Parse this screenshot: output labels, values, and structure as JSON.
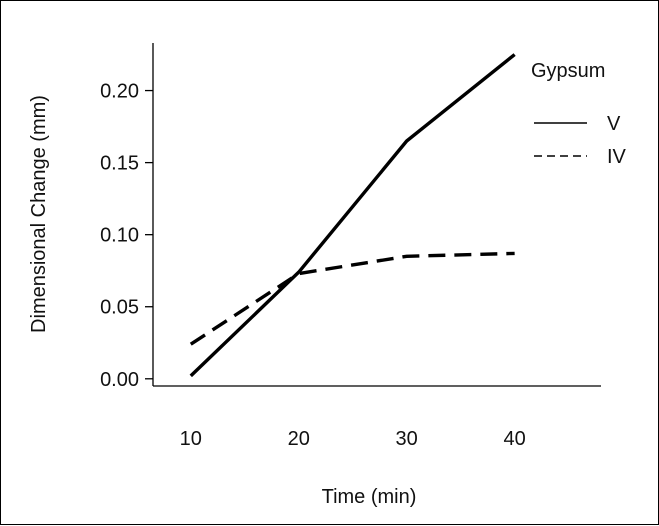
{
  "chart_data": {
    "type": "line",
    "x": [
      10,
      20,
      30,
      40
    ],
    "series": [
      {
        "name": "V",
        "values": [
          0.002,
          0.074,
          0.165,
          0.225
        ],
        "line_style": "solid",
        "color": "#000000"
      },
      {
        "name": "IV",
        "values": [
          0.024,
          0.073,
          0.085,
          0.087
        ],
        "line_style": "dashed",
        "color": "#000000"
      }
    ],
    "xlabel": "Time (min)",
    "ylabel": "Dimensional Change (mm)",
    "xticks": [
      "10",
      "20",
      "30",
      "40"
    ],
    "yticks": [
      "0.00",
      "0.05",
      "0.10",
      "0.15",
      "0.20"
    ],
    "xlim": [
      6.5,
      48
    ],
    "ylim": [
      -0.005,
      0.233
    ],
    "grid": false,
    "legend": {
      "title": "Gypsum",
      "position": "top-right"
    }
  }
}
